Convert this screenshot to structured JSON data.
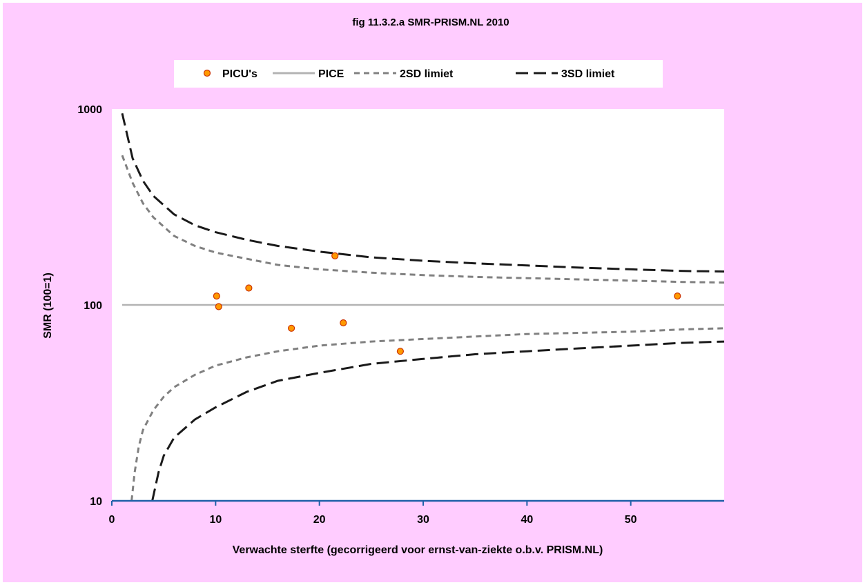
{
  "chart_data": {
    "type": "scatter",
    "title": "fig 11.3.2.a SMR-PRISM.NL 2010",
    "xlabel": "Verwachte sterfte (gecorrigeerd voor ernst-van-ziekte o.b.v. PRISM.NL)",
    "ylabel": "SMR (100=1)",
    "xlim": [
      0,
      59
    ],
    "ylim": [
      10,
      1000
    ],
    "yscale": "log",
    "xticks": [
      0,
      10,
      20,
      30,
      40,
      50
    ],
    "xtick_labels": [
      "0",
      "10",
      "20",
      "30",
      "40",
      "50"
    ],
    "yticks": [
      10,
      100,
      1000
    ],
    "ytick_labels": [
      "10",
      "100",
      "1000"
    ],
    "grid": false,
    "legend_position": "top",
    "legend": [
      "PICU's",
      "PICE",
      "2SD limiet",
      "3SD limiet"
    ],
    "colors": {
      "background": "#ffccff",
      "plot_area": "#ffffff",
      "points_fill": "#ff9900",
      "points_edge": "#cc3300",
      "pice": "#b3b3b3",
      "sd2": "#808080",
      "sd3": "#1a1a1a",
      "xaxis": "#1f5fa8"
    },
    "series": [
      {
        "name": "PICU's",
        "kind": "scatter",
        "x": [
          10.1,
          10.3,
          13.2,
          17.3,
          21.5,
          22.3,
          27.8,
          54.5
        ],
        "y": [
          111,
          98,
          122,
          76,
          178,
          81,
          58,
          111
        ]
      },
      {
        "name": "PICE",
        "kind": "line",
        "x": [
          1,
          59
        ],
        "y": [
          100,
          100
        ]
      },
      {
        "name": "2SD limiet",
        "kind": "line-upper",
        "x": [
          1,
          2,
          3,
          4,
          6,
          8,
          10,
          13,
          16,
          20,
          25,
          30,
          35,
          40,
          45,
          50,
          55,
          59
        ],
        "y": [
          580,
          420,
          330,
          280,
          225,
          200,
          185,
          172,
          160,
          152,
          146,
          142,
          139,
          137,
          135,
          133,
          131,
          130
        ]
      },
      {
        "name": "2SD limiet",
        "kind": "line-lower",
        "x": [
          1.9,
          2.2,
          2.6,
          3,
          4,
          5,
          6,
          8,
          10,
          13,
          16,
          20,
          25,
          30,
          35,
          40,
          45,
          50,
          55,
          59
        ],
        "y": [
          10,
          14,
          19,
          23,
          29,
          34,
          38,
          44,
          49,
          54,
          58,
          62,
          65,
          67,
          69,
          71,
          72,
          73,
          75,
          76
        ]
      },
      {
        "name": "3SD limiet",
        "kind": "line-upper",
        "x": [
          1,
          2,
          3,
          4,
          6,
          8,
          10,
          13,
          16,
          20,
          25,
          30,
          35,
          40,
          45,
          50,
          55,
          59
        ],
        "y": [
          950,
          560,
          430,
          360,
          290,
          255,
          235,
          215,
          200,
          187,
          175,
          168,
          163,
          159,
          155,
          152,
          149,
          148
        ]
      },
      {
        "name": "3SD limiet",
        "kind": "line-lower",
        "x": [
          3.9,
          4.5,
          5,
          6,
          8,
          10,
          13,
          16,
          20,
          25,
          30,
          35,
          40,
          45,
          50,
          55,
          59
        ],
        "y": [
          10,
          14,
          17,
          21,
          26,
          30,
          36,
          41,
          45,
          50,
          53,
          56,
          58,
          60,
          62,
          64,
          65
        ]
      }
    ]
  }
}
